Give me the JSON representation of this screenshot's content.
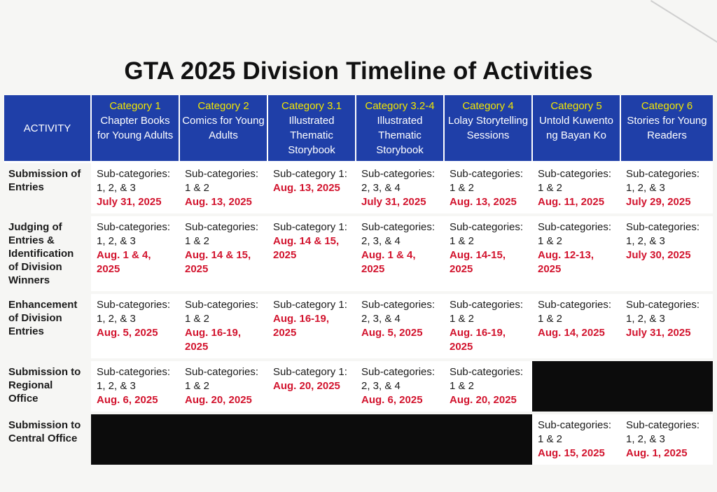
{
  "title": "GTA 2025 Division Timeline of Activities",
  "header": {
    "activity": "ACTIVITY",
    "categories": [
      {
        "name": "Category 1",
        "desc": "Chapter Books for Young Adults"
      },
      {
        "name": "Category 2",
        "desc": "Comics for Young Adults"
      },
      {
        "name": "Category 3.1",
        "desc": "Illustrated Thematic Storybook"
      },
      {
        "name": "Category 3.2-4",
        "desc": "Illustrated Thematic Storybook"
      },
      {
        "name": "Category 4",
        "desc": "Lolay Storytelling Sessions"
      },
      {
        "name": "Category 5",
        "desc": "Untold Kuwento ng Bayan Ko"
      },
      {
        "name": "Category 6",
        "desc": "Stories for Young Readers"
      }
    ]
  },
  "rows": [
    {
      "activity": "Submission of Entries",
      "cells": [
        {
          "l1": "Sub-categories:",
          "l2": "1, 2, & 3",
          "date": "July 31, 2025"
        },
        {
          "l1": "Sub-categories:",
          "l2": "1 & 2",
          "date": "Aug. 13, 2025"
        },
        {
          "l1": "Sub-category 1:",
          "l2": "",
          "date": "Aug. 13, 2025"
        },
        {
          "l1": "Sub-categories:",
          "l2": "2, 3, & 4",
          "date": "July 31, 2025"
        },
        {
          "l1": "Sub-categories:",
          "l2": "1 & 2",
          "date": "Aug. 13, 2025"
        },
        {
          "l1": "Sub-categories:",
          "l2": "1 & 2",
          "date": "Aug. 11, 2025"
        },
        {
          "l1": "Sub-categories:",
          "l2": "1, 2,  & 3",
          "date": "July 29, 2025"
        }
      ]
    },
    {
      "activity": "Judging of Entries & Identification of Division Winners",
      "cells": [
        {
          "l1": "Sub-categories:",
          "l2": "1, 2, & 3",
          "date": "Aug. 1 & 4, 2025"
        },
        {
          "l1": "Sub-categories:",
          "l2": "1 & 2",
          "date": "Aug. 14 & 15, 2025"
        },
        {
          "l1": "Sub-category 1:",
          "l2": "",
          "date": "Aug. 14 & 15, 2025"
        },
        {
          "l1": "Sub-categories:",
          "l2": "2, 3, & 4",
          "date": "Aug. 1 & 4, 2025"
        },
        {
          "l1": "Sub-categories:",
          "l2": "1 & 2",
          "date": "Aug. 14-15, 2025"
        },
        {
          "l1": "Sub-categories:",
          "l2": "1 & 2",
          "date": "Aug. 12-13, 2025"
        },
        {
          "l1": "Sub-categories:",
          "l2": "1, 2,  & 3",
          "date": "July 30, 2025"
        }
      ]
    },
    {
      "activity": "Enhancement of Division Entries",
      "cells": [
        {
          "l1": "Sub-categories:",
          "l2": "1, 2, & 3",
          "date": "Aug. 5, 2025"
        },
        {
          "l1": "Sub-categories:",
          "l2": "1 & 2",
          "date": "Aug. 16-19, 2025"
        },
        {
          "l1": "Sub-category 1:",
          "l2": "",
          "date": "Aug. 16-19, 2025"
        },
        {
          "l1": "Sub-categories:",
          "l2": "2, 3, & 4",
          "date": "Aug. 5, 2025"
        },
        {
          "l1": "Sub-categories:",
          "l2": "1 & 2",
          "date": "Aug. 16-19, 2025"
        },
        {
          "l1": "Sub-categories:",
          "l2": "1 & 2",
          "date": "Aug. 14, 2025"
        },
        {
          "l1": "Sub-categories:",
          "l2": "1, 2,  & 3",
          "date": "July 31, 2025"
        }
      ]
    },
    {
      "activity": "Submission to Regional Office",
      "cells": [
        {
          "l1": "Sub-categories:",
          "l2": "1, 2, & 3",
          "date": "Aug. 6, 2025"
        },
        {
          "l1": "Sub-categories:",
          "l2": "1 & 2",
          "date": "Aug. 20, 2025"
        },
        {
          "l1": "Sub-category 1:",
          "l2": "",
          "date": "Aug. 20, 2025"
        },
        {
          "l1": "Sub-categories:",
          "l2": "2, 3, & 4",
          "date": "Aug. 6, 2025"
        },
        {
          "l1": "Sub-categories:",
          "l2": "1 & 2",
          "date": "Aug. 20, 2025"
        },
        {
          "blank": true
        },
        {
          "blank": true
        }
      ]
    },
    {
      "activity": "Submission to Central Office",
      "cells": [
        {
          "blank": true
        },
        {
          "blank": true
        },
        {
          "blank": true
        },
        {
          "blank": true
        },
        {
          "blank": true
        },
        {
          "l1": "Sub-categories:",
          "l2": "1 & 2",
          "date": "Aug. 15, 2025"
        },
        {
          "l1": "Sub-categories:",
          "l2": "1, 2,  & 3",
          "date": "Aug. 1, 2025"
        }
      ]
    }
  ]
}
